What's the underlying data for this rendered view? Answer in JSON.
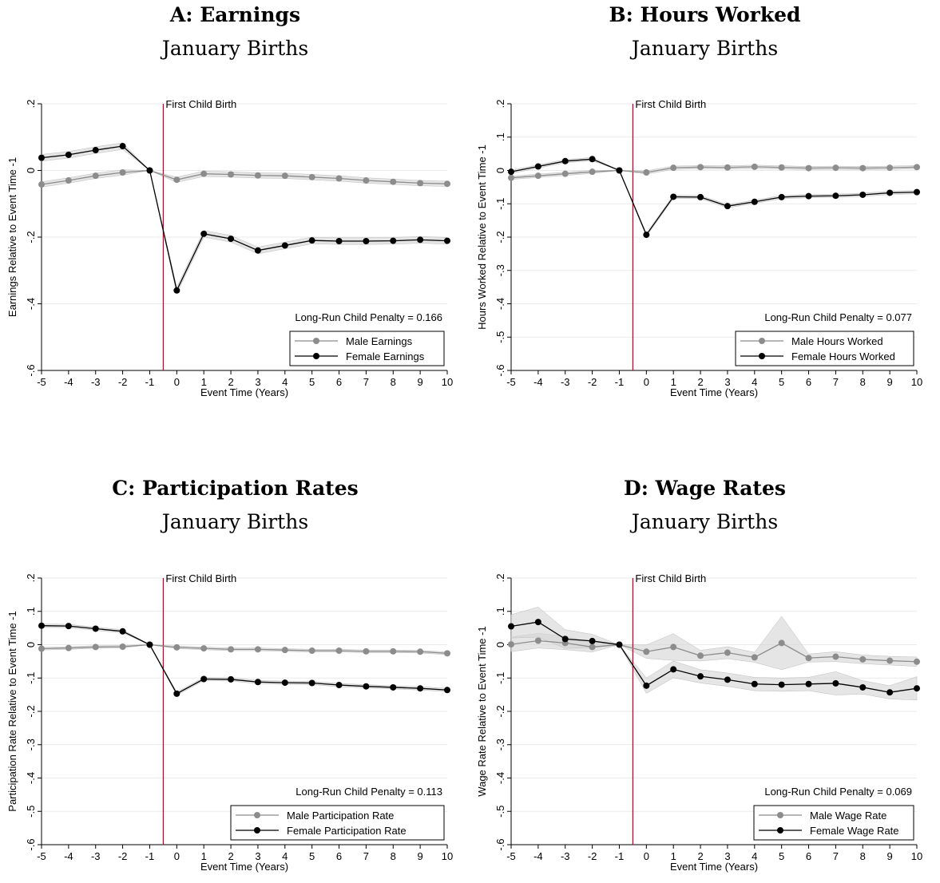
{
  "chart_data": [
    {
      "type": "line",
      "title": "A: Earnings",
      "subtitle": "January Births",
      "xlabel": "Event Time (Years)",
      "ylabel": "Earnings Relative to Event Time -1",
      "x": [
        -5,
        -4,
        -3,
        -2,
        -1,
        0,
        1,
        2,
        3,
        4,
        5,
        6,
        7,
        8,
        9,
        10
      ],
      "xlim": [
        -5,
        10
      ],
      "ylim": [
        -0.6,
        0.2
      ],
      "yticks": [
        0.2,
        0,
        -0.2,
        -0.4,
        -0.6
      ],
      "ytick_labels": [
        ".2",
        "0",
        "-.2",
        "-.4",
        "-.6"
      ],
      "event_line_label": "First Child Birth",
      "annotation": "Long-Run Child Penalty = 0.166",
      "legend_position": "bottom-right",
      "grid": true,
      "series": [
        {
          "name": "Male Earnings",
          "color": "#8c8c8c",
          "values": [
            -0.042,
            -0.03,
            -0.016,
            -0.006,
            0,
            -0.028,
            -0.01,
            -0.012,
            -0.015,
            -0.016,
            -0.02,
            -0.024,
            -0.03,
            -0.034,
            -0.038,
            -0.04
          ],
          "ci": [
            0.008,
            0.008,
            0.008,
            0.008,
            0,
            0.008,
            0.008,
            0.008,
            0.008,
            0.008,
            0.008,
            0.008,
            0.008,
            0.008,
            0.008,
            0.008
          ]
        },
        {
          "name": "Female Earnings",
          "color": "#000000",
          "values": [
            0.038,
            0.047,
            0.061,
            0.073,
            0,
            -0.36,
            -0.19,
            -0.205,
            -0.24,
            -0.225,
            -0.21,
            -0.212,
            -0.212,
            -0.211,
            -0.208,
            -0.211
          ],
          "ci": [
            0.01,
            0.01,
            0.01,
            0.01,
            0,
            0.01,
            0.01,
            0.01,
            0.01,
            0.01,
            0.01,
            0.01,
            0.01,
            0.01,
            0.01,
            0.01
          ]
        }
      ]
    },
    {
      "type": "line",
      "title": "B: Hours Worked",
      "subtitle": "January Births",
      "xlabel": "Event Time (Years)",
      "ylabel": "Hours Worked Relative to Event Time -1",
      "x": [
        -5,
        -4,
        -3,
        -2,
        -1,
        0,
        1,
        2,
        3,
        4,
        5,
        6,
        7,
        8,
        9,
        10
      ],
      "xlim": [
        -5,
        10
      ],
      "ylim": [
        -0.6,
        0.2
      ],
      "yticks": [
        0.2,
        0.1,
        0,
        -0.1,
        -0.2,
        -0.3,
        -0.4,
        -0.5,
        -0.6
      ],
      "ytick_labels": [
        ".2",
        ".1",
        "0",
        "-.1",
        "-.2",
        "-.3",
        "-.4",
        "-.5",
        "-.6"
      ],
      "event_line_label": "First Child Birth",
      "annotation": "Long-Run Child Penalty = 0.077",
      "legend_position": "bottom-right",
      "grid": true,
      "series": [
        {
          "name": "Male Hours Worked",
          "color": "#8c8c8c",
          "values": [
            -0.022,
            -0.016,
            -0.01,
            -0.004,
            0,
            -0.006,
            0.008,
            0.01,
            0.009,
            0.011,
            0.009,
            0.007,
            0.008,
            0.007,
            0.008,
            0.01
          ],
          "ci": [
            0.005,
            0.005,
            0.005,
            0.005,
            0,
            0.005,
            0.005,
            0.005,
            0.005,
            0.005,
            0.005,
            0.005,
            0.005,
            0.005,
            0.005,
            0.005
          ]
        },
        {
          "name": "Female Hours Worked",
          "color": "#000000",
          "values": [
            -0.004,
            0.012,
            0.028,
            0.034,
            0,
            -0.193,
            -0.079,
            -0.08,
            -0.107,
            -0.094,
            -0.08,
            -0.077,
            -0.076,
            -0.073,
            -0.067,
            -0.065
          ],
          "ci": [
            0.005,
            0.005,
            0.005,
            0.005,
            0,
            0.005,
            0.005,
            0.005,
            0.005,
            0.005,
            0.005,
            0.005,
            0.005,
            0.005,
            0.005,
            0.005
          ]
        }
      ]
    },
    {
      "type": "line",
      "title": "C: Participation Rates",
      "subtitle": "January Births",
      "xlabel": "Event Time (Years)",
      "ylabel": "Participation Rate Relative to Event Time -1",
      "x": [
        -5,
        -4,
        -3,
        -2,
        -1,
        0,
        1,
        2,
        3,
        4,
        5,
        6,
        7,
        8,
        9,
        10
      ],
      "xlim": [
        -5,
        10
      ],
      "ylim": [
        -0.6,
        0.2
      ],
      "yticks": [
        0.2,
        0.1,
        0,
        -0.1,
        -0.2,
        -0.3,
        -0.4,
        -0.5,
        -0.6
      ],
      "ytick_labels": [
        ".2",
        ".1",
        "0",
        "-.1",
        "-.2",
        "-.3",
        "-.4",
        "-.5",
        "-.6"
      ],
      "event_line_label": "First Child Birth",
      "annotation": "Long-Run Child Penalty = 0.113",
      "legend_position": "bottom-right",
      "grid": true,
      "series": [
        {
          "name": "Male Participation Rate",
          "color": "#8c8c8c",
          "values": [
            -0.012,
            -0.01,
            -0.007,
            -0.006,
            0,
            -0.008,
            -0.011,
            -0.014,
            -0.014,
            -0.016,
            -0.018,
            -0.018,
            -0.02,
            -0.02,
            -0.021,
            -0.026
          ],
          "ci": [
            0.004,
            0.004,
            0.004,
            0.004,
            0,
            0.004,
            0.004,
            0.004,
            0.004,
            0.004,
            0.004,
            0.004,
            0.004,
            0.004,
            0.004,
            0.004
          ]
        },
        {
          "name": "Female Participation Rate",
          "color": "#000000",
          "values": [
            0.057,
            0.056,
            0.048,
            0.04,
            0,
            -0.147,
            -0.103,
            -0.104,
            -0.112,
            -0.114,
            -0.115,
            -0.121,
            -0.125,
            -0.128,
            -0.131,
            -0.136
          ],
          "ci": [
            0.005,
            0.005,
            0.005,
            0.005,
            0,
            0.005,
            0.005,
            0.005,
            0.005,
            0.005,
            0.005,
            0.005,
            0.005,
            0.005,
            0.005,
            0.005
          ]
        }
      ]
    },
    {
      "type": "line",
      "title": "D: Wage Rates",
      "subtitle": "January Births",
      "xlabel": "Event Time (Years)",
      "ylabel": "Wage Rate Relative to Event Time -1",
      "x": [
        -5,
        -4,
        -3,
        -2,
        -1,
        0,
        1,
        2,
        3,
        4,
        5,
        6,
        7,
        8,
        9,
        10
      ],
      "xlim": [
        -5,
        10
      ],
      "ylim": [
        -0.6,
        0.2
      ],
      "yticks": [
        0.2,
        0.1,
        0,
        -0.1,
        -0.2,
        -0.3,
        -0.4,
        -0.5,
        -0.6
      ],
      "ytick_labels": [
        ".2",
        ".1",
        "0",
        "-.1",
        "-.2",
        "-.3",
        "-.4",
        "-.5",
        "-.6"
      ],
      "event_line_label": "First Child Birth",
      "annotation": "Long-Run Child Penalty = 0.069",
      "legend_position": "bottom-right",
      "grid": true,
      "series": [
        {
          "name": "Male Wage Rate",
          "color": "#8c8c8c",
          "values": [
            0.001,
            0.012,
            0.005,
            -0.007,
            0,
            -0.021,
            -0.007,
            -0.033,
            -0.024,
            -0.038,
            0.005,
            -0.04,
            -0.036,
            -0.044,
            -0.048,
            -0.051
          ],
          "ci": [
            0.022,
            0.022,
            0.02,
            0.015,
            0,
            0.02,
            0.04,
            0.016,
            0.018,
            0.015,
            0.08,
            0.012,
            0.015,
            0.013,
            0.013,
            0.014
          ]
        },
        {
          "name": "Female Wage Rate",
          "color": "#000000",
          "values": [
            0.055,
            0.068,
            0.017,
            0.011,
            0,
            -0.123,
            -0.074,
            -0.095,
            -0.105,
            -0.118,
            -0.12,
            -0.118,
            -0.116,
            -0.128,
            -0.143,
            -0.131
          ],
          "ci": [
            0.035,
            0.045,
            0.028,
            0.02,
            0,
            0.023,
            0.025,
            0.02,
            0.02,
            0.02,
            0.02,
            0.02,
            0.035,
            0.02,
            0.02,
            0.035
          ]
        }
      ]
    }
  ]
}
